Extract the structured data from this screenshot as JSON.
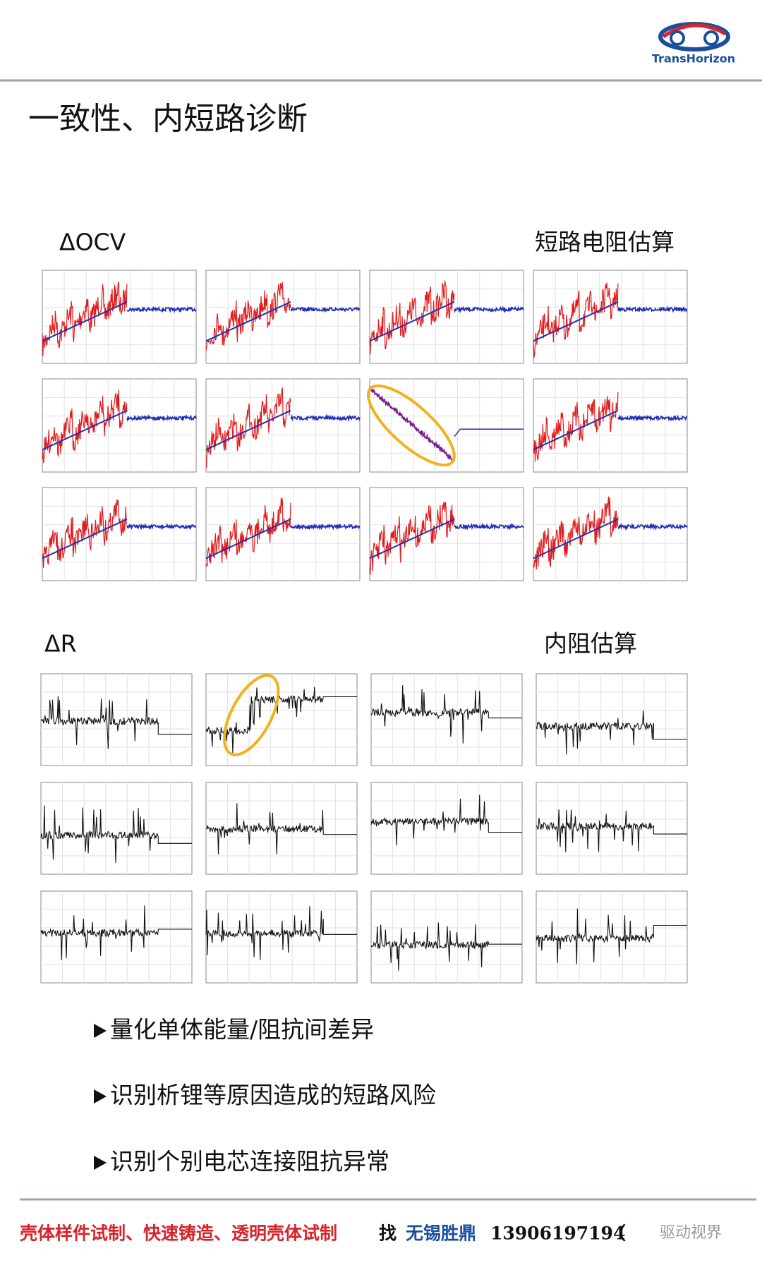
{
  "header": {
    "logo": "TransHorizon"
  },
  "title": "一致性、内短路诊断",
  "sections": [
    {
      "label": "ΔOCV",
      "caption": "短路电阻估算"
    },
    {
      "label": "ΔR",
      "caption": "内阻估算"
    }
  ],
  "bullets": [
    "量化单体能量/阻抗间差异",
    "识别析锂等原因造成的短路风险",
    "识别个别电芯连接阻抗异常"
  ],
  "footer": {
    "services": "壳体样件试制、快速铸造、透明壳体试制",
    "verb": "找",
    "company": "无锡胜鼎",
    "phone": "13906197194",
    "paren": "（",
    "watermark": "驱动视界"
  }
}
